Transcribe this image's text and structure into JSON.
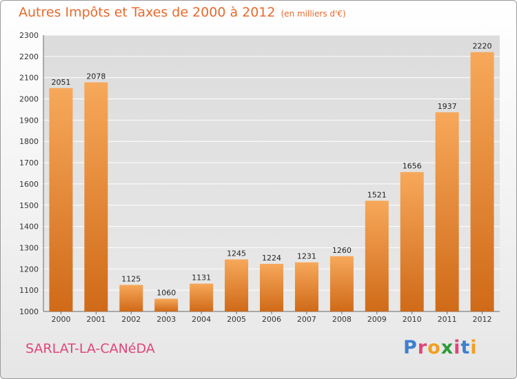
{
  "title": "Autres Impôts et Taxes de 2000 à 2012",
  "subtitle": "(en milliers d'€)",
  "commune": "SARLAT-LA-CANéDA",
  "logo": {
    "text": "Proxiti",
    "letter_colors": [
      "#3d7fd1",
      "#e0457a",
      "#f0a020",
      "#2f9a3a",
      "#e0457a",
      "#3d7fd1",
      "#f0a020"
    ]
  },
  "colors": {
    "bar_top": "#f7a85a",
    "bar_bottom": "#cf6a18",
    "title": "#e8692d",
    "commune": "#e0457a",
    "grid": "#ffffff"
  },
  "chart_data": {
    "type": "bar",
    "categories": [
      "2000",
      "2001",
      "2002",
      "2003",
      "2004",
      "2005",
      "2006",
      "2007",
      "2008",
      "2009",
      "2010",
      "2011",
      "2012"
    ],
    "values": [
      2051,
      2078,
      1125,
      1060,
      1131,
      1245,
      1224,
      1231,
      1260,
      1521,
      1656,
      1937,
      2220
    ],
    "title": "Autres Impôts et Taxes de 2000 à 2012",
    "subtitle": "(en milliers d'€)",
    "xlabel": "",
    "ylabel": "",
    "ylim": [
      1000,
      2300
    ],
    "yticks": [
      1000,
      1100,
      1200,
      1300,
      1400,
      1500,
      1600,
      1700,
      1800,
      1900,
      2000,
      2100,
      2200,
      2300
    ],
    "grid": true,
    "data_labels": true
  }
}
